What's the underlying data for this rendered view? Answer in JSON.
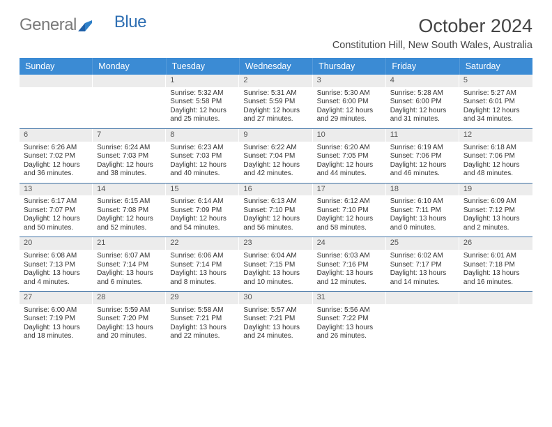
{
  "logo": {
    "part1": "General",
    "part2": "Blue"
  },
  "title": "October 2024",
  "subtitle": "Constitution Hill, New South Wales, Australia",
  "colors": {
    "header_bg": "#3b8bd4",
    "row_divider": "#3b6fa3",
    "daynum_bg": "#ececec",
    "logo_gray": "#7a7a7a",
    "logo_blue": "#2f6fb3"
  },
  "weekday_labels": [
    "Sunday",
    "Monday",
    "Tuesday",
    "Wednesday",
    "Thursday",
    "Friday",
    "Saturday"
  ],
  "weeks": [
    [
      {
        "blank": true
      },
      {
        "blank": true
      },
      {
        "day": "1",
        "sunrise": "Sunrise: 5:32 AM",
        "sunset": "Sunset: 5:58 PM",
        "daylight": "Daylight: 12 hours and 25 minutes."
      },
      {
        "day": "2",
        "sunrise": "Sunrise: 5:31 AM",
        "sunset": "Sunset: 5:59 PM",
        "daylight": "Daylight: 12 hours and 27 minutes."
      },
      {
        "day": "3",
        "sunrise": "Sunrise: 5:30 AM",
        "sunset": "Sunset: 6:00 PM",
        "daylight": "Daylight: 12 hours and 29 minutes."
      },
      {
        "day": "4",
        "sunrise": "Sunrise: 5:28 AM",
        "sunset": "Sunset: 6:00 PM",
        "daylight": "Daylight: 12 hours and 31 minutes."
      },
      {
        "day": "5",
        "sunrise": "Sunrise: 5:27 AM",
        "sunset": "Sunset: 6:01 PM",
        "daylight": "Daylight: 12 hours and 34 minutes."
      }
    ],
    [
      {
        "day": "6",
        "sunrise": "Sunrise: 6:26 AM",
        "sunset": "Sunset: 7:02 PM",
        "daylight": "Daylight: 12 hours and 36 minutes."
      },
      {
        "day": "7",
        "sunrise": "Sunrise: 6:24 AM",
        "sunset": "Sunset: 7:03 PM",
        "daylight": "Daylight: 12 hours and 38 minutes."
      },
      {
        "day": "8",
        "sunrise": "Sunrise: 6:23 AM",
        "sunset": "Sunset: 7:03 PM",
        "daylight": "Daylight: 12 hours and 40 minutes."
      },
      {
        "day": "9",
        "sunrise": "Sunrise: 6:22 AM",
        "sunset": "Sunset: 7:04 PM",
        "daylight": "Daylight: 12 hours and 42 minutes."
      },
      {
        "day": "10",
        "sunrise": "Sunrise: 6:20 AM",
        "sunset": "Sunset: 7:05 PM",
        "daylight": "Daylight: 12 hours and 44 minutes."
      },
      {
        "day": "11",
        "sunrise": "Sunrise: 6:19 AM",
        "sunset": "Sunset: 7:06 PM",
        "daylight": "Daylight: 12 hours and 46 minutes."
      },
      {
        "day": "12",
        "sunrise": "Sunrise: 6:18 AM",
        "sunset": "Sunset: 7:06 PM",
        "daylight": "Daylight: 12 hours and 48 minutes."
      }
    ],
    [
      {
        "day": "13",
        "sunrise": "Sunrise: 6:17 AM",
        "sunset": "Sunset: 7:07 PM",
        "daylight": "Daylight: 12 hours and 50 minutes."
      },
      {
        "day": "14",
        "sunrise": "Sunrise: 6:15 AM",
        "sunset": "Sunset: 7:08 PM",
        "daylight": "Daylight: 12 hours and 52 minutes."
      },
      {
        "day": "15",
        "sunrise": "Sunrise: 6:14 AM",
        "sunset": "Sunset: 7:09 PM",
        "daylight": "Daylight: 12 hours and 54 minutes."
      },
      {
        "day": "16",
        "sunrise": "Sunrise: 6:13 AM",
        "sunset": "Sunset: 7:10 PM",
        "daylight": "Daylight: 12 hours and 56 minutes."
      },
      {
        "day": "17",
        "sunrise": "Sunrise: 6:12 AM",
        "sunset": "Sunset: 7:10 PM",
        "daylight": "Daylight: 12 hours and 58 minutes."
      },
      {
        "day": "18",
        "sunrise": "Sunrise: 6:10 AM",
        "sunset": "Sunset: 7:11 PM",
        "daylight": "Daylight: 13 hours and 0 minutes."
      },
      {
        "day": "19",
        "sunrise": "Sunrise: 6:09 AM",
        "sunset": "Sunset: 7:12 PM",
        "daylight": "Daylight: 13 hours and 2 minutes."
      }
    ],
    [
      {
        "day": "20",
        "sunrise": "Sunrise: 6:08 AM",
        "sunset": "Sunset: 7:13 PM",
        "daylight": "Daylight: 13 hours and 4 minutes."
      },
      {
        "day": "21",
        "sunrise": "Sunrise: 6:07 AM",
        "sunset": "Sunset: 7:14 PM",
        "daylight": "Daylight: 13 hours and 6 minutes."
      },
      {
        "day": "22",
        "sunrise": "Sunrise: 6:06 AM",
        "sunset": "Sunset: 7:14 PM",
        "daylight": "Daylight: 13 hours and 8 minutes."
      },
      {
        "day": "23",
        "sunrise": "Sunrise: 6:04 AM",
        "sunset": "Sunset: 7:15 PM",
        "daylight": "Daylight: 13 hours and 10 minutes."
      },
      {
        "day": "24",
        "sunrise": "Sunrise: 6:03 AM",
        "sunset": "Sunset: 7:16 PM",
        "daylight": "Daylight: 13 hours and 12 minutes."
      },
      {
        "day": "25",
        "sunrise": "Sunrise: 6:02 AM",
        "sunset": "Sunset: 7:17 PM",
        "daylight": "Daylight: 13 hours and 14 minutes."
      },
      {
        "day": "26",
        "sunrise": "Sunrise: 6:01 AM",
        "sunset": "Sunset: 7:18 PM",
        "daylight": "Daylight: 13 hours and 16 minutes."
      }
    ],
    [
      {
        "day": "27",
        "sunrise": "Sunrise: 6:00 AM",
        "sunset": "Sunset: 7:19 PM",
        "daylight": "Daylight: 13 hours and 18 minutes."
      },
      {
        "day": "28",
        "sunrise": "Sunrise: 5:59 AM",
        "sunset": "Sunset: 7:20 PM",
        "daylight": "Daylight: 13 hours and 20 minutes."
      },
      {
        "day": "29",
        "sunrise": "Sunrise: 5:58 AM",
        "sunset": "Sunset: 7:21 PM",
        "daylight": "Daylight: 13 hours and 22 minutes."
      },
      {
        "day": "30",
        "sunrise": "Sunrise: 5:57 AM",
        "sunset": "Sunset: 7:21 PM",
        "daylight": "Daylight: 13 hours and 24 minutes."
      },
      {
        "day": "31",
        "sunrise": "Sunrise: 5:56 AM",
        "sunset": "Sunset: 7:22 PM",
        "daylight": "Daylight: 13 hours and 26 minutes."
      },
      {
        "blank": true
      },
      {
        "blank": true
      }
    ]
  ]
}
